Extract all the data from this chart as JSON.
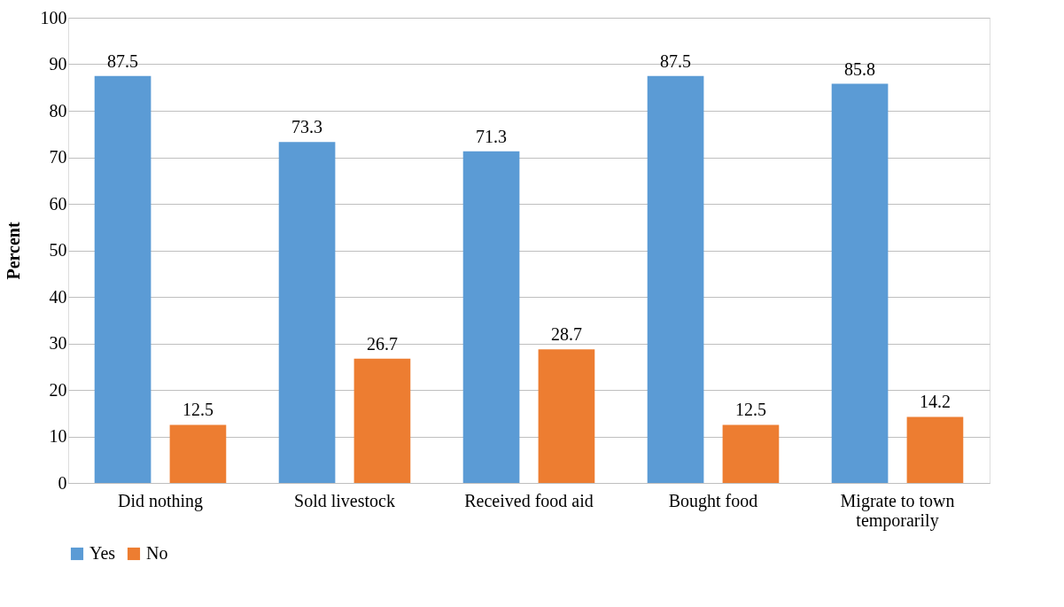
{
  "chart_data": {
    "type": "bar",
    "ylabel": "Percent",
    "categories": [
      "Did nothing",
      "Sold livestock",
      "Received food aid",
      "Bought food",
      "Migrate to town temporarily"
    ],
    "series": [
      {
        "name": "Yes",
        "color": "#5b9bd5",
        "values": [
          87.5,
          73.3,
          71.3,
          87.5,
          85.8
        ]
      },
      {
        "name": "No",
        "color": "#ed7d31",
        "values": [
          12.5,
          26.7,
          28.7,
          12.5,
          14.2
        ]
      }
    ],
    "ylim": [
      0,
      100
    ],
    "yticks": [
      0,
      10,
      20,
      30,
      40,
      50,
      60,
      70,
      80,
      90,
      100
    ],
    "grid": "y",
    "legend": "bottom",
    "data_labels": true
  }
}
